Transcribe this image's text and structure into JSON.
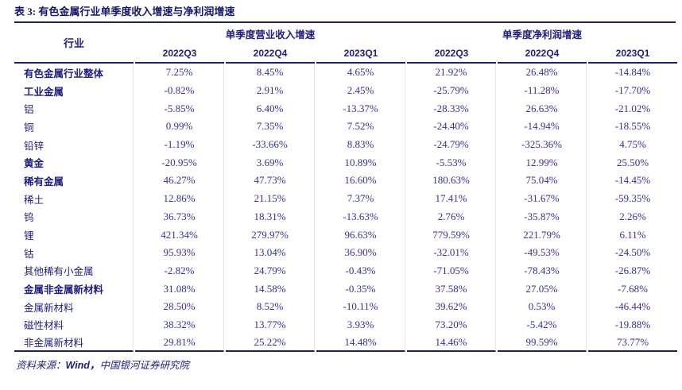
{
  "colors": {
    "heading_navy": "#15156e",
    "text_navy": "#1d1d82",
    "number_navy": "#32329b",
    "rule_navy": "#1d1d72",
    "grid_light": "#e6e6ec",
    "background": "#ffffff"
  },
  "table": {
    "title": "表 3: 有色金属行业单季度收入增速与净利润增速",
    "industry_column_header": "行业",
    "column_groups": [
      {
        "label": "单季度营业收入增速",
        "quarters": [
          "2022Q3",
          "2022Q4",
          "2023Q1"
        ]
      },
      {
        "label": "单季度净利润增速",
        "quarters": [
          "2022Q3",
          "2022Q4",
          "2023Q1"
        ]
      }
    ],
    "rows": [
      {
        "industry": "有色金属行业整体",
        "bold": true,
        "values": [
          "7.25%",
          "8.45%",
          "4.65%",
          "21.92%",
          "26.48%",
          "-14.84%"
        ]
      },
      {
        "industry": "工业金属",
        "bold": true,
        "values": [
          "-0.82%",
          "2.91%",
          "2.45%",
          "-25.79%",
          "-11.28%",
          "-17.70%"
        ]
      },
      {
        "industry": "铝",
        "bold": false,
        "values": [
          "-5.85%",
          "6.40%",
          "-13.37%",
          "-28.33%",
          "26.63%",
          "-21.02%"
        ]
      },
      {
        "industry": "铜",
        "bold": false,
        "values": [
          "0.99%",
          "7.35%",
          "7.52%",
          "-24.40%",
          "-14.94%",
          "-18.55%"
        ]
      },
      {
        "industry": "铅锌",
        "bold": false,
        "values": [
          "-1.19%",
          "-33.66%",
          "8.83%",
          "-24.79%",
          "-325.36%",
          "4.75%"
        ]
      },
      {
        "industry": "黄金",
        "bold": true,
        "values": [
          "-20.95%",
          "3.69%",
          "10.89%",
          "-5.53%",
          "12.99%",
          "25.50%"
        ]
      },
      {
        "industry": "稀有金属",
        "bold": true,
        "values": [
          "46.27%",
          "47.73%",
          "16.60%",
          "180.63%",
          "75.04%",
          "-14.45%"
        ]
      },
      {
        "industry": "稀土",
        "bold": false,
        "values": [
          "12.86%",
          "21.15%",
          "7.37%",
          "17.41%",
          "-31.67%",
          "-59.35%"
        ]
      },
      {
        "industry": "钨",
        "bold": false,
        "values": [
          "36.73%",
          "18.31%",
          "-13.63%",
          "2.76%",
          "-35.87%",
          "2.26%"
        ]
      },
      {
        "industry": "锂",
        "bold": false,
        "values": [
          "421.34%",
          "279.97%",
          "96.63%",
          "779.59%",
          "221.79%",
          "6.11%"
        ]
      },
      {
        "industry": "钴",
        "bold": false,
        "values": [
          "95.93%",
          "13.04%",
          "36.90%",
          "-32.01%",
          "-49.53%",
          "-24.50%"
        ]
      },
      {
        "industry": "其他稀有小金属",
        "bold": false,
        "values": [
          "-2.82%",
          "24.79%",
          "-0.43%",
          "-71.05%",
          "-78.43%",
          "-26.87%"
        ]
      },
      {
        "industry": "金属非金属新材料",
        "bold": true,
        "values": [
          "31.08%",
          "14.58%",
          "-0.35%",
          "37.58%",
          "27.05%",
          "-7.68%"
        ]
      },
      {
        "industry": "金属新材料",
        "bold": false,
        "values": [
          "28.50%",
          "8.52%",
          "-10.11%",
          "39.62%",
          "0.53%",
          "-46.44%"
        ]
      },
      {
        "industry": "磁性材料",
        "bold": false,
        "values": [
          "38.32%",
          "13.77%",
          "3.93%",
          "73.20%",
          "-5.42%",
          "-19.88%"
        ]
      },
      {
        "industry": "非金属新材料",
        "bold": false,
        "values": [
          "29.81%",
          "25.22%",
          "14.48%",
          "14.46%",
          "99.59%",
          "73.77%"
        ]
      }
    ]
  },
  "footer": {
    "source_label": "资料来源：",
    "source_en": "Wind，",
    "source_cn": "中国银河证券研究院"
  }
}
